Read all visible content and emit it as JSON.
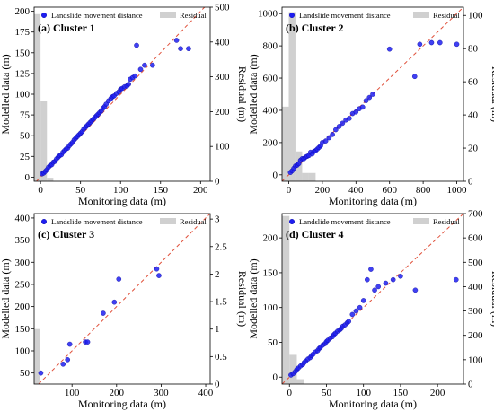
{
  "figure": {
    "legend_point_label": "Landslide movement distance",
    "legend_bar_label": "Residual",
    "colors": {
      "points": "#1e1ef0",
      "points_edge": "#0a0aa0",
      "residual": "#d0d0d0",
      "reference": "#e0503a"
    }
  },
  "chart_data": [
    {
      "type": "scatter",
      "title": "(a) Cluster 1",
      "xlabel": "Monitoring data (m)",
      "ylabel": "Modelled data (m)",
      "y2label": "Residual (m)",
      "xlim": [
        -8,
        212
      ],
      "ylim": [
        -5,
        205
      ],
      "y2lim": [
        0,
        500
      ],
      "xticks": [
        0,
        50,
        100,
        150,
        200
      ],
      "yticks": [
        0,
        25,
        50,
        75,
        100,
        125,
        150,
        175,
        200
      ],
      "y2ticks": [
        0,
        100,
        200,
        300,
        400,
        500
      ],
      "reference_line": [
        [
          -5,
          -5
        ],
        [
          212,
          212
        ]
      ],
      "series": [
        {
          "name": "Landslide movement distance",
          "x": [
            2,
            4,
            6,
            8,
            10,
            12,
            14,
            16,
            18,
            20,
            22,
            24,
            26,
            28,
            30,
            32,
            34,
            36,
            38,
            40,
            42,
            44,
            46,
            48,
            50,
            52,
            54,
            56,
            58,
            60,
            62,
            64,
            66,
            68,
            70,
            72,
            74,
            76,
            78,
            80,
            82,
            85,
            88,
            90,
            92,
            95,
            98,
            100,
            102,
            105,
            108,
            110,
            112,
            115,
            118,
            120,
            125,
            130,
            140,
            170,
            175,
            185
          ],
          "y": [
            4,
            5,
            7,
            9,
            12,
            14,
            15,
            18,
            19,
            22,
            24,
            26,
            27,
            30,
            32,
            34,
            35,
            38,
            40,
            42,
            45,
            47,
            49,
            51,
            53,
            55,
            58,
            60,
            62,
            64,
            66,
            68,
            70,
            72,
            74,
            76,
            78,
            80,
            83,
            85,
            88,
            92,
            95,
            97,
            98,
            101,
            103,
            106,
            107,
            109,
            110,
            112,
            118,
            120,
            122,
            159,
            130,
            135,
            135,
            165,
            155,
            155
          ]
        }
      ],
      "residual_bins": [
        {
          "x0": -8,
          "x1": 0,
          "value": 480
        },
        {
          "x0": 0,
          "x1": 8,
          "value": 230
        },
        {
          "x0": 8,
          "x1": 16,
          "value": 10
        }
      ]
    },
    {
      "type": "scatter",
      "title": "(b) Cluster 2",
      "xlabel": "Monitoring data (m)",
      "ylabel": "Modelled data (m)",
      "y2label": "Residual (m)",
      "xlim": [
        -40,
        1040
      ],
      "ylim": [
        -40,
        1040
      ],
      "y2lim": [
        0,
        105
      ],
      "xticks": [
        0,
        200,
        400,
        600,
        800,
        1000
      ],
      "yticks": [
        0,
        200,
        400,
        600,
        800,
        1000
      ],
      "y2ticks": [
        0,
        20,
        40,
        60,
        80,
        100
      ],
      "reference_line": [
        [
          -40,
          -40
        ],
        [
          1040,
          1040
        ]
      ],
      "series": [
        {
          "name": "Landslide movement distance",
          "x": [
            10,
            20,
            30,
            40,
            50,
            60,
            70,
            80,
            90,
            100,
            110,
            120,
            130,
            140,
            150,
            160,
            170,
            180,
            190,
            200,
            220,
            240,
            260,
            280,
            300,
            320,
            340,
            360,
            380,
            400,
            420,
            440,
            460,
            480,
            500,
            600,
            750,
            780,
            850,
            900,
            1000
          ],
          "y": [
            15,
            25,
            40,
            55,
            60,
            70,
            90,
            100,
            100,
            110,
            115,
            120,
            140,
            130,
            145,
            150,
            160,
            170,
            180,
            200,
            210,
            230,
            250,
            280,
            300,
            320,
            340,
            350,
            380,
            390,
            410,
            420,
            460,
            480,
            500,
            780,
            610,
            810,
            820,
            820,
            810
          ]
        }
      ],
      "residual_bins": [
        {
          "x0": -40,
          "x1": 0,
          "value": 45
        },
        {
          "x0": 0,
          "x1": 40,
          "value": 102
        },
        {
          "x0": 40,
          "x1": 80,
          "value": 18
        },
        {
          "x0": 80,
          "x1": 120,
          "value": 5
        },
        {
          "x0": 120,
          "x1": 160,
          "value": 5
        }
      ]
    },
    {
      "type": "scatter",
      "title": "(c) Cluster 3",
      "xlabel": "Monitoring data (m)",
      "ylabel": "Modelled data (m)",
      "y2label": "Residual (m)",
      "xlim": [
        15,
        410
      ],
      "ylim": [
        25,
        410
      ],
      "y2lim": [
        0,
        3.1
      ],
      "xticks": [
        100,
        200,
        300,
        400
      ],
      "yticks": [
        50,
        100,
        150,
        200,
        250,
        300,
        350,
        400
      ],
      "y2ticks": [
        0.0,
        0.5,
        1.0,
        1.5,
        2.0,
        2.5,
        3.0
      ],
      "reference_line": [
        [
          15,
          15
        ],
        [
          410,
          410
        ]
      ],
      "series": [
        {
          "name": "Landslide movement distance",
          "x": [
            30,
            80,
            90,
            95,
            130,
            135,
            170,
            195,
            205,
            290,
            295
          ],
          "y": [
            50,
            70,
            80,
            115,
            120,
            120,
            185,
            210,
            262,
            285,
            270
          ]
        }
      ],
      "residual_bins": [
        {
          "x0": 15,
          "x1": 28,
          "value": 1.0
        }
      ]
    },
    {
      "type": "scatter",
      "title": "(d) Cluster 4",
      "xlabel": "Monitoring data (m)",
      "ylabel": "Modelled data (m)",
      "y2label": "Residual (m)",
      "xlim": [
        -10,
        235
      ],
      "ylim": [
        -10,
        235
      ],
      "y2lim": [
        0,
        700
      ],
      "xticks": [
        0,
        50,
        100,
        150,
        200
      ],
      "yticks": [
        0,
        50,
        100,
        150,
        200
      ],
      "y2ticks": [
        0,
        100,
        200,
        300,
        400,
        500,
        600,
        700
      ],
      "reference_line": [
        [
          -10,
          -10
        ],
        [
          235,
          235
        ]
      ],
      "series": [
        {
          "name": "Landslide movement distance",
          "x": [
            2,
            5,
            8,
            10,
            12,
            15,
            18,
            20,
            22,
            25,
            28,
            30,
            32,
            35,
            38,
            40,
            42,
            45,
            48,
            50,
            52,
            55,
            58,
            60,
            62,
            65,
            68,
            70,
            72,
            75,
            78,
            80,
            85,
            90,
            95,
            100,
            105,
            110,
            115,
            120,
            130,
            140,
            150,
            170,
            225
          ],
          "y": [
            3,
            5,
            8,
            11,
            13,
            16,
            18,
            21,
            23,
            26,
            28,
            31,
            33,
            36,
            38,
            41,
            43,
            46,
            48,
            51,
            53,
            56,
            58,
            61,
            63,
            66,
            68,
            70,
            73,
            75,
            78,
            80,
            90,
            95,
            100,
            110,
            140,
            155,
            125,
            130,
            135,
            140,
            145,
            125,
            140
          ]
        }
      ],
      "residual_bins": [
        {
          "x0": -10,
          "x1": 0,
          "value": 690
        },
        {
          "x0": 0,
          "x1": 10,
          "value": 120
        },
        {
          "x0": 10,
          "x1": 20,
          "value": 20
        }
      ]
    }
  ]
}
